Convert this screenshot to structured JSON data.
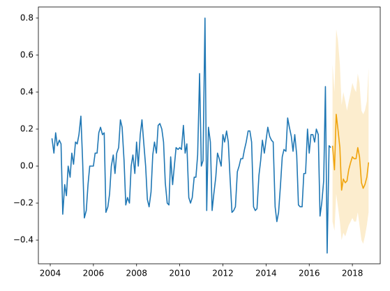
{
  "chart_data": {
    "type": "line",
    "xlim": [
      2003.45,
      2019.29
    ],
    "ylim": [
      -0.528,
      0.86
    ],
    "xticks": [
      2004,
      2006,
      2008,
      2010,
      2012,
      2014,
      2016,
      2018
    ],
    "yticks": [
      {
        "value": -0.4,
        "label": "−0.4"
      },
      {
        "value": -0.2,
        "label": "−0.2"
      },
      {
        "value": 0,
        "label": "0.0"
      },
      {
        "value": 0.2,
        "label": "0.2"
      },
      {
        "value": 0.4,
        "label": "0.4"
      },
      {
        "value": 0.6,
        "label": "0.6"
      },
      {
        "value": 0.8,
        "label": "0.8"
      }
    ],
    "series": [
      {
        "color": "#1f77b4",
        "x": [
          2004.08,
          2004.17,
          2004.25,
          2004.33,
          2004.42,
          2004.5,
          2004.58,
          2004.67,
          2004.75,
          2004.83,
          2004.92,
          2005.0,
          2005.08,
          2005.17,
          2005.25,
          2005.33,
          2005.42,
          2005.5,
          2005.58,
          2005.67,
          2005.75,
          2005.83,
          2005.92,
          2006.0,
          2006.08,
          2006.17,
          2006.25,
          2006.33,
          2006.42,
          2006.5,
          2006.58,
          2006.67,
          2006.75,
          2006.83,
          2006.92,
          2007.0,
          2007.08,
          2007.17,
          2007.25,
          2007.33,
          2007.42,
          2007.5,
          2007.58,
          2007.67,
          2007.75,
          2007.83,
          2007.92,
          2008.0,
          2008.08,
          2008.17,
          2008.25,
          2008.33,
          2008.42,
          2008.5,
          2008.58,
          2008.67,
          2008.75,
          2008.83,
          2008.92,
          2009.0,
          2009.08,
          2009.17,
          2009.25,
          2009.33,
          2009.42,
          2009.5,
          2009.58,
          2009.67,
          2009.75,
          2009.83,
          2009.92,
          2010.0,
          2010.08,
          2010.17,
          2010.25,
          2010.33,
          2010.42,
          2010.5,
          2010.58,
          2010.67,
          2010.75,
          2010.83,
          2010.92,
          2011.0,
          2011.08,
          2011.17,
          2011.25,
          2011.33,
          2011.42,
          2011.5,
          2011.58,
          2011.67,
          2011.75,
          2011.83,
          2011.92,
          2012.0,
          2012.08,
          2012.17,
          2012.25,
          2012.33,
          2012.42,
          2012.5,
          2012.58,
          2012.67,
          2012.75,
          2012.83,
          2012.92,
          2013.0,
          2013.08,
          2013.17,
          2013.25,
          2013.33,
          2013.42,
          2013.5,
          2013.58,
          2013.67,
          2013.75,
          2013.83,
          2013.92,
          2014.0,
          2014.08,
          2014.17,
          2014.25,
          2014.33,
          2014.42,
          2014.5,
          2014.58,
          2014.67,
          2014.75,
          2014.83,
          2014.92,
          2015.0,
          2015.08,
          2015.17,
          2015.25,
          2015.33,
          2015.42,
          2015.5,
          2015.58,
          2015.67,
          2015.75,
          2015.83,
          2015.92,
          2016.0,
          2016.08,
          2016.17,
          2016.25,
          2016.33,
          2016.42,
          2016.5,
          2016.58,
          2016.67,
          2016.75,
          2016.83,
          2016.92,
          2017.0
        ],
        "values": [
          0.15,
          0.07,
          0.18,
          0.11,
          0.14,
          0.12,
          -0.26,
          -0.1,
          -0.16,
          0.0,
          -0.06,
          0.07,
          0.01,
          0.13,
          0.12,
          0.17,
          0.27,
          0.03,
          -0.28,
          -0.24,
          -0.1,
          0.0,
          0.0,
          0.0,
          0.07,
          0.07,
          0.18,
          0.21,
          0.17,
          0.18,
          -0.25,
          -0.22,
          -0.15,
          0.0,
          0.06,
          -0.04,
          0.07,
          0.1,
          0.25,
          0.21,
          0.03,
          -0.21,
          -0.17,
          -0.2,
          0.0,
          0.06,
          -0.04,
          0.13,
          0.0,
          0.17,
          0.25,
          0.13,
          0.0,
          -0.18,
          -0.22,
          -0.14,
          0.06,
          0.13,
          0.07,
          0.22,
          0.23,
          0.2,
          0.13,
          -0.09,
          -0.2,
          -0.21,
          0.05,
          -0.1,
          0.0,
          0.1,
          0.09,
          0.1,
          0.09,
          0.22,
          0.07,
          0.12,
          -0.17,
          -0.2,
          -0.17,
          -0.06,
          -0.06,
          0.06,
          0.5,
          0.0,
          0.03,
          0.8,
          -0.24,
          0.21,
          0.13,
          -0.24,
          -0.15,
          -0.06,
          0.07,
          0.04,
          0.0,
          0.17,
          0.13,
          0.19,
          0.13,
          -0.06,
          -0.25,
          -0.24,
          -0.22,
          -0.03,
          0.0,
          0.04,
          0.04,
          0.09,
          0.13,
          0.19,
          0.19,
          0.13,
          -0.22,
          -0.24,
          -0.23,
          -0.05,
          0.03,
          0.14,
          0.07,
          0.14,
          0.21,
          0.16,
          0.14,
          0.13,
          -0.22,
          -0.3,
          -0.25,
          -0.1,
          0.05,
          0.09,
          0.08,
          0.26,
          0.21,
          0.16,
          0.08,
          0.17,
          0.06,
          -0.21,
          -0.22,
          -0.22,
          -0.04,
          -0.04,
          0.2,
          0.07,
          0.17,
          0.17,
          0.13,
          0.2,
          0.17,
          -0.27,
          -0.2,
          -0.08,
          0.43,
          -0.47,
          0.11,
          0.1
        ]
      },
      {
        "color": "#f0a30a",
        "x": [
          2017.08,
          2017.17,
          2017.25,
          2017.33,
          2017.42,
          2017.5,
          2017.58,
          2017.67,
          2017.75,
          2017.83,
          2017.92,
          2018.0,
          2018.08,
          2018.17,
          2018.25,
          2018.33,
          2018.42,
          2018.5,
          2018.58,
          2018.67,
          2018.75
        ],
        "values": [
          0.11,
          -0.02,
          0.28,
          0.2,
          0.1,
          -0.13,
          -0.07,
          -0.09,
          -0.08,
          -0.02,
          0.02,
          0.05,
          0.04,
          0.04,
          0.1,
          0.05,
          -0.09,
          -0.12,
          -0.1,
          -0.06,
          0.02
        ],
        "upper": [
          0.55,
          0.4,
          0.74,
          0.68,
          0.55,
          0.33,
          0.4,
          0.35,
          0.3,
          0.35,
          0.4,
          0.45,
          0.42,
          0.4,
          0.5,
          0.45,
          0.3,
          0.28,
          0.3,
          0.35,
          0.53
        ],
        "lower": [
          -0.3,
          -0.35,
          -0.15,
          -0.22,
          -0.3,
          -0.4,
          -0.36,
          -0.38,
          -0.35,
          -0.32,
          -0.3,
          -0.28,
          -0.3,
          -0.3,
          -0.25,
          -0.32,
          -0.4,
          -0.42,
          -0.38,
          -0.32,
          -0.25
        ]
      }
    ]
  }
}
